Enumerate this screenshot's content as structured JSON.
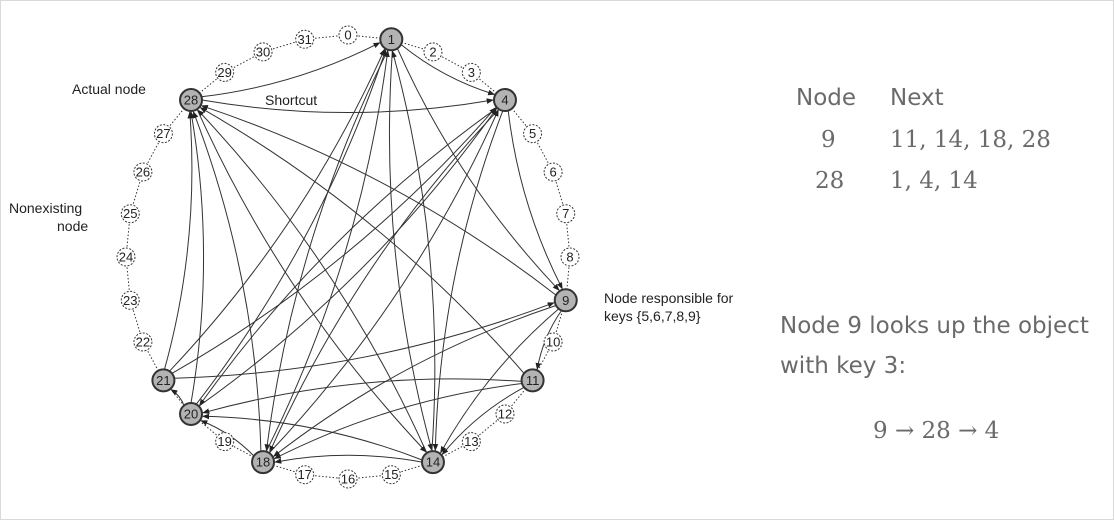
{
  "ring": {
    "size": 32,
    "actual_nodes": [
      1,
      4,
      9,
      11,
      14,
      18,
      20,
      21,
      28
    ],
    "colors": {
      "actual_fill": "#b3b3b3",
      "stroke": "#333333",
      "text": "#222222"
    },
    "shortcuts": {
      "1": [
        4,
        9,
        14,
        18
      ],
      "4": [
        9,
        14,
        18,
        20
      ],
      "9": [
        11,
        14,
        18,
        28
      ],
      "11": [
        14,
        18,
        20,
        28
      ],
      "14": [
        18,
        20,
        28,
        1
      ],
      "18": [
        20,
        28,
        1,
        4
      ],
      "20": [
        21,
        28,
        1,
        4
      ],
      "21": [
        28,
        1,
        4,
        9
      ],
      "28": [
        1,
        4,
        14
      ]
    }
  },
  "annotations": {
    "actual_node": "Actual node",
    "shortcut": "Shortcut",
    "nonexisting_line1": "Nonexisting",
    "nonexisting_line2": "node",
    "responsible_line1": "Node responsible for",
    "responsible_line2": "keys {5,6,7,8,9}"
  },
  "finger_table": {
    "headers": [
      "Node",
      "Next"
    ],
    "rows": [
      {
        "node": "9",
        "next": "11, 14, 18, 28"
      },
      {
        "node": "28",
        "next": "1, 4, 14"
      }
    ]
  },
  "lookup": {
    "line1": "Node 9 looks up the object",
    "line2": "with key 3:",
    "path": "9 → 28 → 4"
  }
}
